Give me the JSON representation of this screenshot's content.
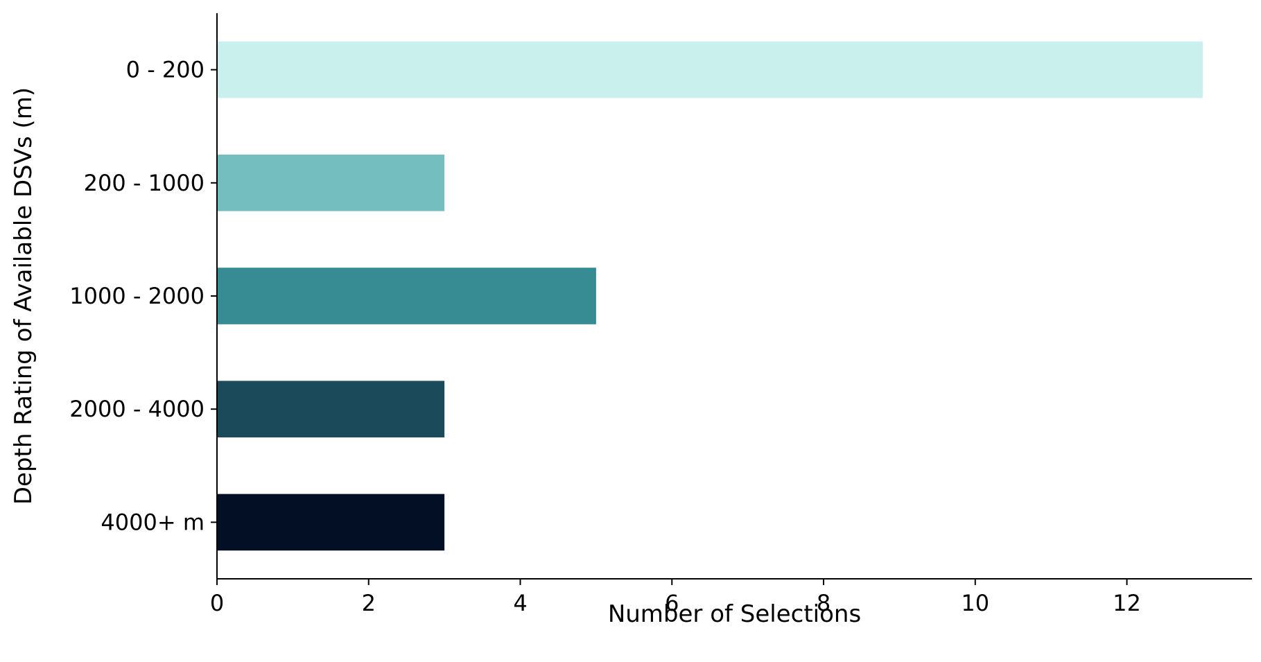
{
  "chart_data": {
    "type": "bar",
    "orientation": "horizontal",
    "categories": [
      "0 - 200",
      "200 - 1000",
      "1000 - 2000",
      "2000 - 4000",
      "4000+ m"
    ],
    "values": [
      13,
      3,
      5,
      3,
      3
    ],
    "colors": [
      "#caf0ed",
      "#74bec0",
      "#378c94",
      "#1b4a5a",
      "#030f24"
    ],
    "xlabel": "Number of Selections",
    "ylabel": "Depth Rating of Available DSVs (m)",
    "xlim": [
      0,
      13.65
    ],
    "xticks": [
      0,
      2,
      4,
      6,
      8,
      10,
      12
    ],
    "grid": false,
    "legend": "none"
  }
}
